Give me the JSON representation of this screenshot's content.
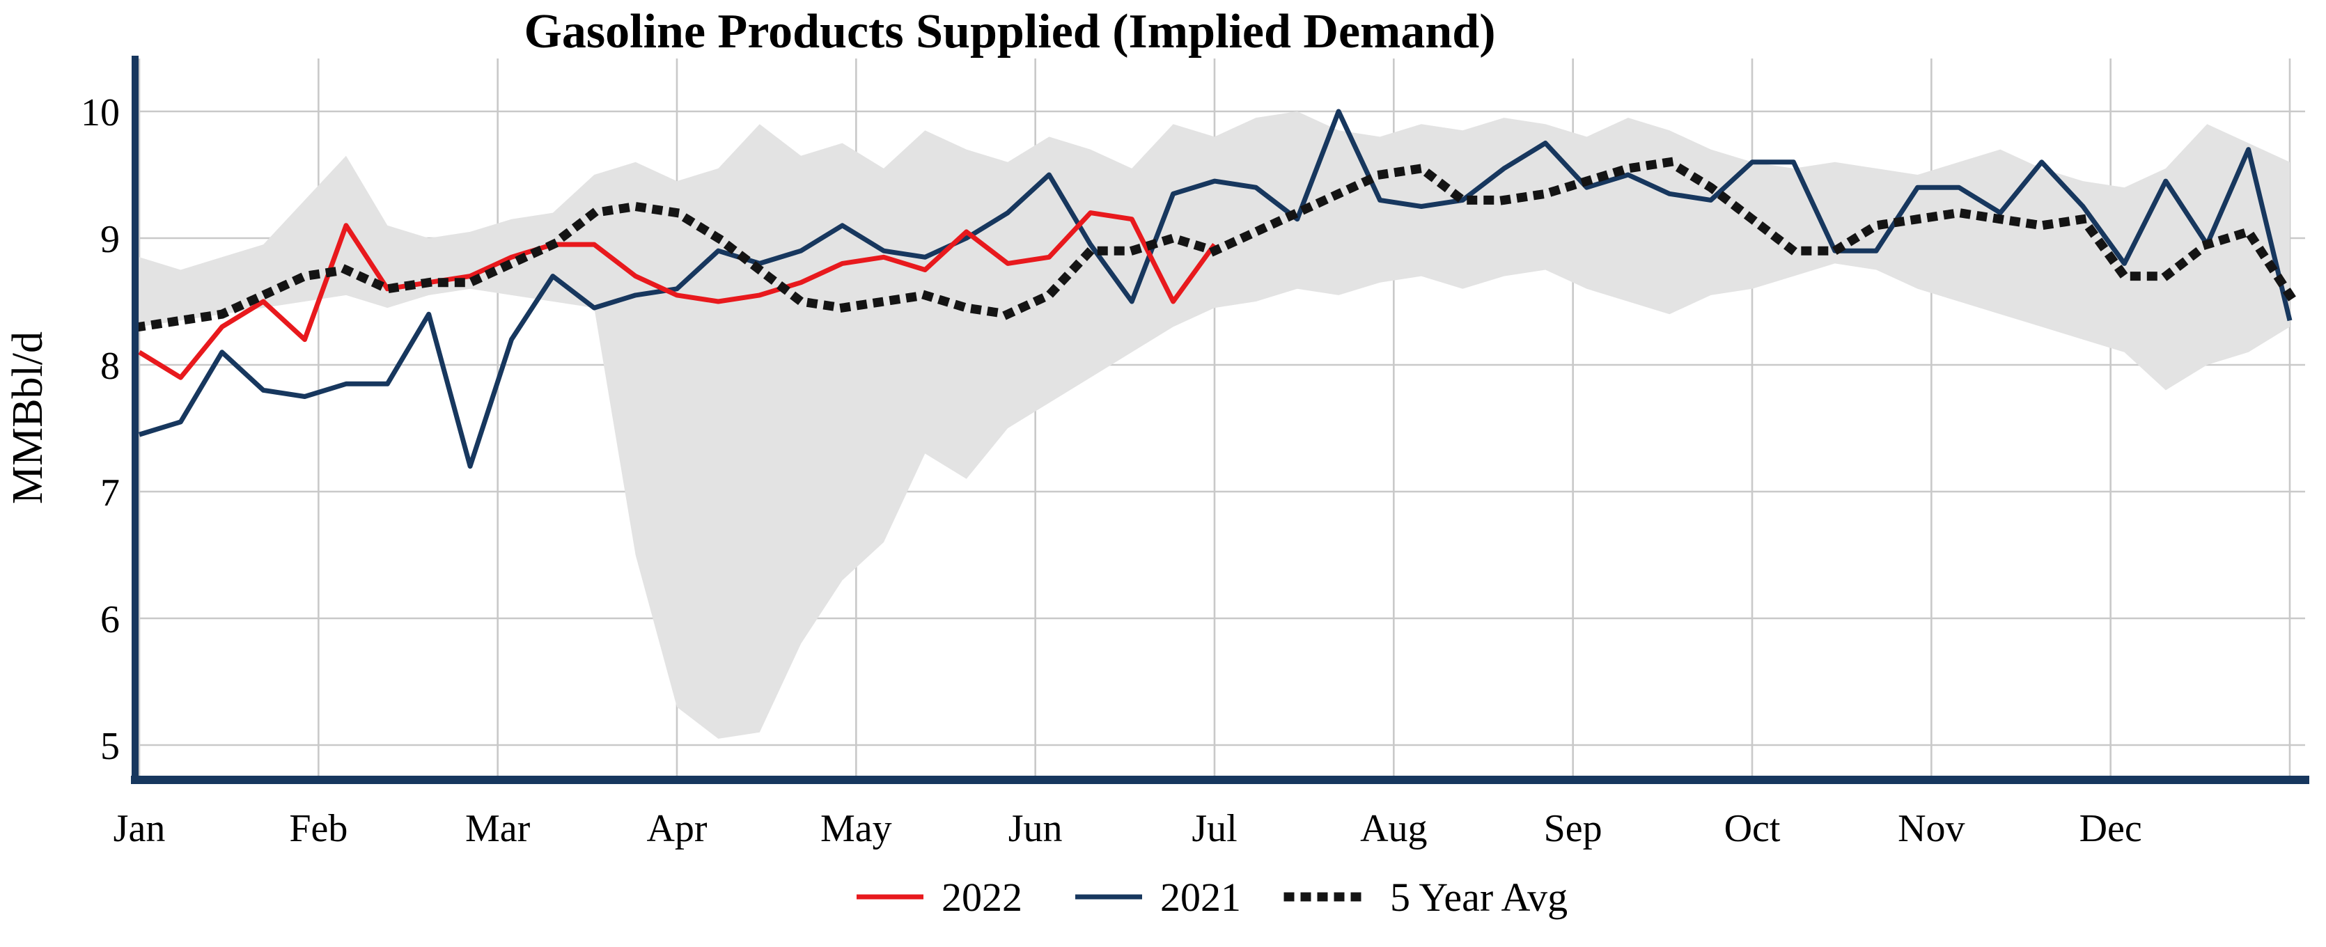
{
  "chart_data": {
    "type": "line",
    "title": "Gasoline Products Supplied (Implied Demand)",
    "ylabel": "MMBbl/d",
    "ylim": [
      5,
      10
    ],
    "yticks": [
      5,
      6,
      7,
      8,
      9,
      10
    ],
    "x_months": [
      "Jan",
      "Feb",
      "Mar",
      "Apr",
      "May",
      "Jun",
      "Jul",
      "Aug",
      "Sep",
      "Oct",
      "Nov",
      "Dec"
    ],
    "x_unit": "week",
    "weeks_total": 53,
    "grid": true,
    "legend_position": "bottom",
    "axis_color": "#17375e",
    "grid_color": "#c9c9c9",
    "band": {
      "name": "5-year range",
      "color": "#e3e3e3",
      "upper": [
        8.85,
        8.75,
        8.85,
        8.95,
        9.3,
        9.65,
        9.1,
        9.0,
        9.05,
        9.15,
        9.2,
        9.5,
        9.6,
        9.45,
        9.55,
        9.9,
        9.65,
        9.75,
        9.55,
        9.85,
        9.7,
        9.6,
        9.8,
        9.7,
        9.55,
        9.9,
        9.8,
        9.95,
        10.0,
        9.85,
        9.8,
        9.9,
        9.85,
        9.95,
        9.9,
        9.8,
        9.95,
        9.85,
        9.7,
        9.6,
        9.55,
        9.6,
        9.55,
        9.5,
        9.6,
        9.7,
        9.55,
        9.45,
        9.4,
        9.55,
        9.9,
        9.75,
        9.6
      ],
      "lower": [
        8.3,
        8.35,
        8.4,
        8.45,
        8.5,
        8.55,
        8.45,
        8.55,
        8.6,
        8.55,
        8.5,
        8.45,
        6.5,
        5.3,
        5.05,
        5.1,
        5.8,
        6.3,
        6.6,
        7.3,
        7.1,
        7.5,
        7.7,
        7.9,
        8.1,
        8.3,
        8.45,
        8.5,
        8.6,
        8.55,
        8.65,
        8.7,
        8.6,
        8.7,
        8.75,
        8.6,
        8.5,
        8.4,
        8.55,
        8.6,
        8.7,
        8.8,
        8.75,
        8.6,
        8.5,
        8.4,
        8.3,
        8.2,
        8.1,
        7.8,
        8.0,
        8.1,
        8.3
      ]
    },
    "series": [
      {
        "name": "2022",
        "color": "#e8191d",
        "style": "solid",
        "start_week": 1,
        "values": [
          8.1,
          7.9,
          8.3,
          8.5,
          8.2,
          9.1,
          8.6,
          8.65,
          8.7,
          8.85,
          8.95,
          8.95,
          8.7,
          8.55,
          8.5,
          8.55,
          8.65,
          8.8,
          8.85,
          8.75,
          9.05,
          8.8,
          8.85,
          9.2,
          9.15,
          8.5,
          8.95
        ]
      },
      {
        "name": "2021",
        "color": "#17375e",
        "style": "solid",
        "start_week": 1,
        "values": [
          7.45,
          7.55,
          8.1,
          7.8,
          7.75,
          7.85,
          7.85,
          8.4,
          7.2,
          8.2,
          8.7,
          8.45,
          8.55,
          8.6,
          8.9,
          8.8,
          8.9,
          9.1,
          8.9,
          8.85,
          9.0,
          9.2,
          9.5,
          8.95,
          8.5,
          9.35,
          9.45,
          9.4,
          9.15,
          10.0,
          9.3,
          9.25,
          9.3,
          9.55,
          9.75,
          9.4,
          9.5,
          9.35,
          9.3,
          9.6,
          9.6,
          8.9,
          8.9,
          9.4,
          9.4,
          9.2,
          9.6,
          9.25,
          8.8,
          9.45,
          8.95,
          9.7,
          8.35
        ]
      },
      {
        "name": "5 Year Avg",
        "color": "#141414",
        "style": "dotted",
        "start_week": 1,
        "values": [
          8.3,
          8.35,
          8.4,
          8.55,
          8.7,
          8.75,
          8.6,
          8.65,
          8.65,
          8.8,
          8.95,
          9.2,
          9.25,
          9.2,
          9.0,
          8.75,
          8.5,
          8.45,
          8.5,
          8.55,
          8.45,
          8.4,
          8.55,
          8.9,
          8.9,
          9.0,
          8.9,
          9.05,
          9.2,
          9.35,
          9.5,
          9.55,
          9.3,
          9.3,
          9.35,
          9.45,
          9.55,
          9.6,
          9.4,
          9.15,
          8.9,
          8.9,
          9.1,
          9.15,
          9.2,
          9.15,
          9.1,
          9.15,
          8.7,
          8.7,
          8.95,
          9.05,
          8.55
        ]
      }
    ]
  }
}
